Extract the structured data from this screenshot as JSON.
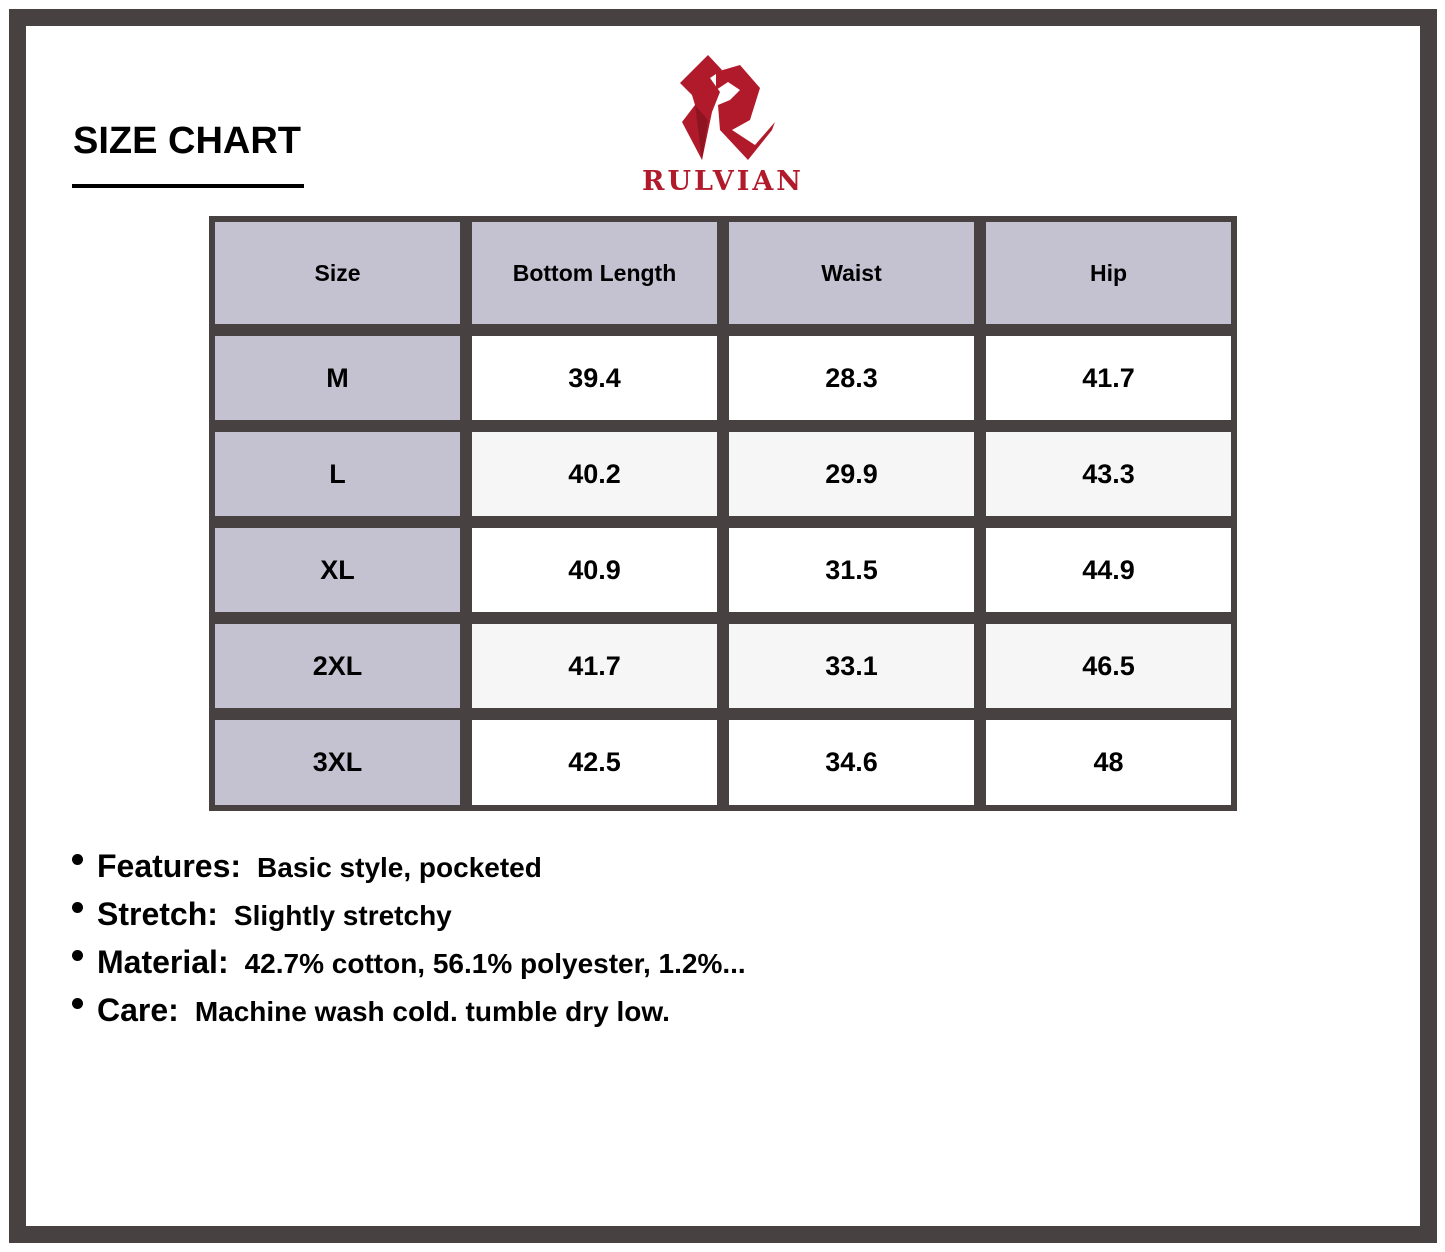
{
  "title": "SIZE CHART",
  "brand": {
    "name": "RULVIAN",
    "color": "#b11a2b"
  },
  "table": {
    "headers": [
      "Size",
      "Bottom Length",
      "Waist",
      "Hip"
    ],
    "rows": [
      [
        "M",
        "39.4",
        "28.3",
        "41.7"
      ],
      [
        "L",
        "40.2",
        "29.9",
        "43.3"
      ],
      [
        "XL",
        "40.9",
        "31.5",
        "44.9"
      ],
      [
        "2XL",
        "41.7",
        "33.1",
        "46.5"
      ],
      [
        "3XL",
        "42.5",
        "34.6",
        "48"
      ]
    ]
  },
  "notes": [
    {
      "label": "Features:",
      "value": "Basic style, pocketed"
    },
    {
      "label": "Stretch:",
      "value": "Slightly stretchy"
    },
    {
      "label": "Material:",
      "value": "42.7% cotton, 56.1% polyester, 1.2%..."
    },
    {
      "label": "Care:",
      "value": "Machine wash cold. tumble dry low."
    }
  ]
}
